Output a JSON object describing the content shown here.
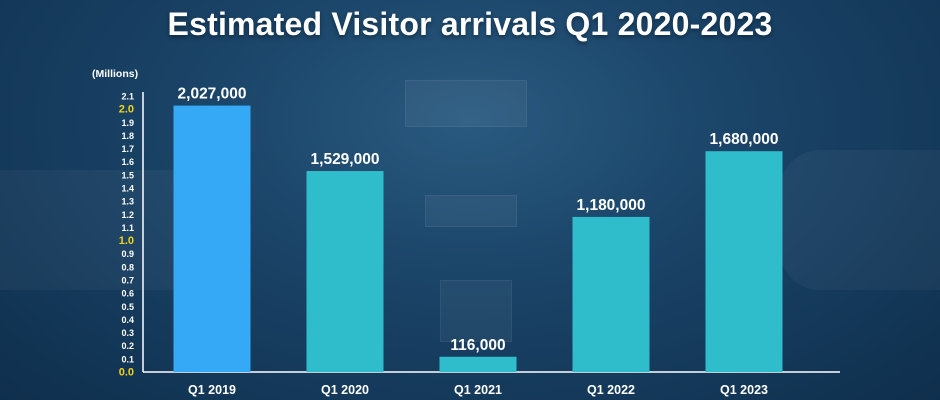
{
  "title": "Estimated Visitor arrivals Q1 2020-2023",
  "unit_label": "(Millions)",
  "colors": {
    "highlight_bar": "#35a9f5",
    "bar": "#2fbdcc",
    "tick_text": "#ffffff",
    "tick_highlight": "#f2d21b",
    "axis": "#ffffff"
  },
  "chart_data": {
    "type": "bar",
    "title": "Estimated Visitor arrivals Q1 2020-2023",
    "ylabel": "(Millions)",
    "xlabel": "",
    "ylim": [
      0,
      2.1
    ],
    "grid": false,
    "categories": [
      "Q1 2019",
      "Q1 2020",
      "Q1 2021",
      "Q1 2022",
      "Q1 2023"
    ],
    "values": [
      2.027,
      1.529,
      0.116,
      1.18,
      1.68
    ],
    "data_labels": [
      "2,027,000",
      "1,529,000",
      "116,000",
      "1,180,000",
      "1,680,000"
    ],
    "highlighted_category": "Q1 2019",
    "y_ticks": [
      "0.0",
      "0.1",
      "0.2",
      "0.3",
      "0.4",
      "0.5",
      "0.6",
      "0.7",
      "0.8",
      "0.9",
      "1.0",
      "1.1",
      "1.2",
      "1.3",
      "1.4",
      "1.5",
      "1.6",
      "1.7",
      "1.8",
      "1.9",
      "2.0",
      "2.1"
    ],
    "highlighted_ticks": [
      "0.0",
      "1.0",
      "2.0"
    ]
  }
}
